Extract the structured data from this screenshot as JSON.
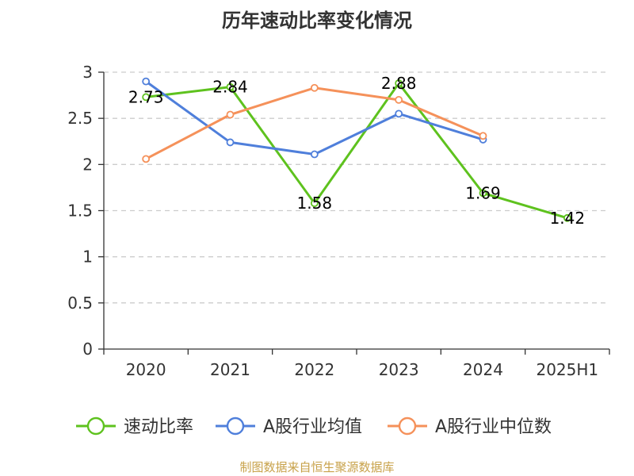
{
  "chart_data": {
    "type": "line",
    "title": "历年速动比率变化情况",
    "categories": [
      "2020",
      "2021",
      "2022",
      "2023",
      "2024",
      "2025H1"
    ],
    "ylim": [
      0,
      3
    ],
    "yticks": [
      "0",
      "0.5",
      "1",
      "1.5",
      "2",
      "2.5",
      "3"
    ],
    "grid": "horizontal-dashed",
    "legend_position": "bottom",
    "series": [
      {
        "name": "速动比率",
        "color": "#5ec21e",
        "values": [
          2.73,
          2.84,
          1.58,
          2.88,
          1.69,
          1.42
        ],
        "labels": [
          "2.73",
          "2.84",
          "1.58",
          "2.88",
          "1.69",
          "1.42"
        ]
      },
      {
        "name": "A股行业均值",
        "color": "#4f7fdb",
        "values": [
          2.9,
          2.24,
          2.11,
          2.55,
          2.27,
          null
        ]
      },
      {
        "name": "A股行业中位数",
        "color": "#f5915a",
        "values": [
          2.06,
          2.54,
          2.83,
          2.7,
          2.31,
          null
        ]
      }
    ]
  },
  "source": "制图数据来自恒生聚源数据库"
}
